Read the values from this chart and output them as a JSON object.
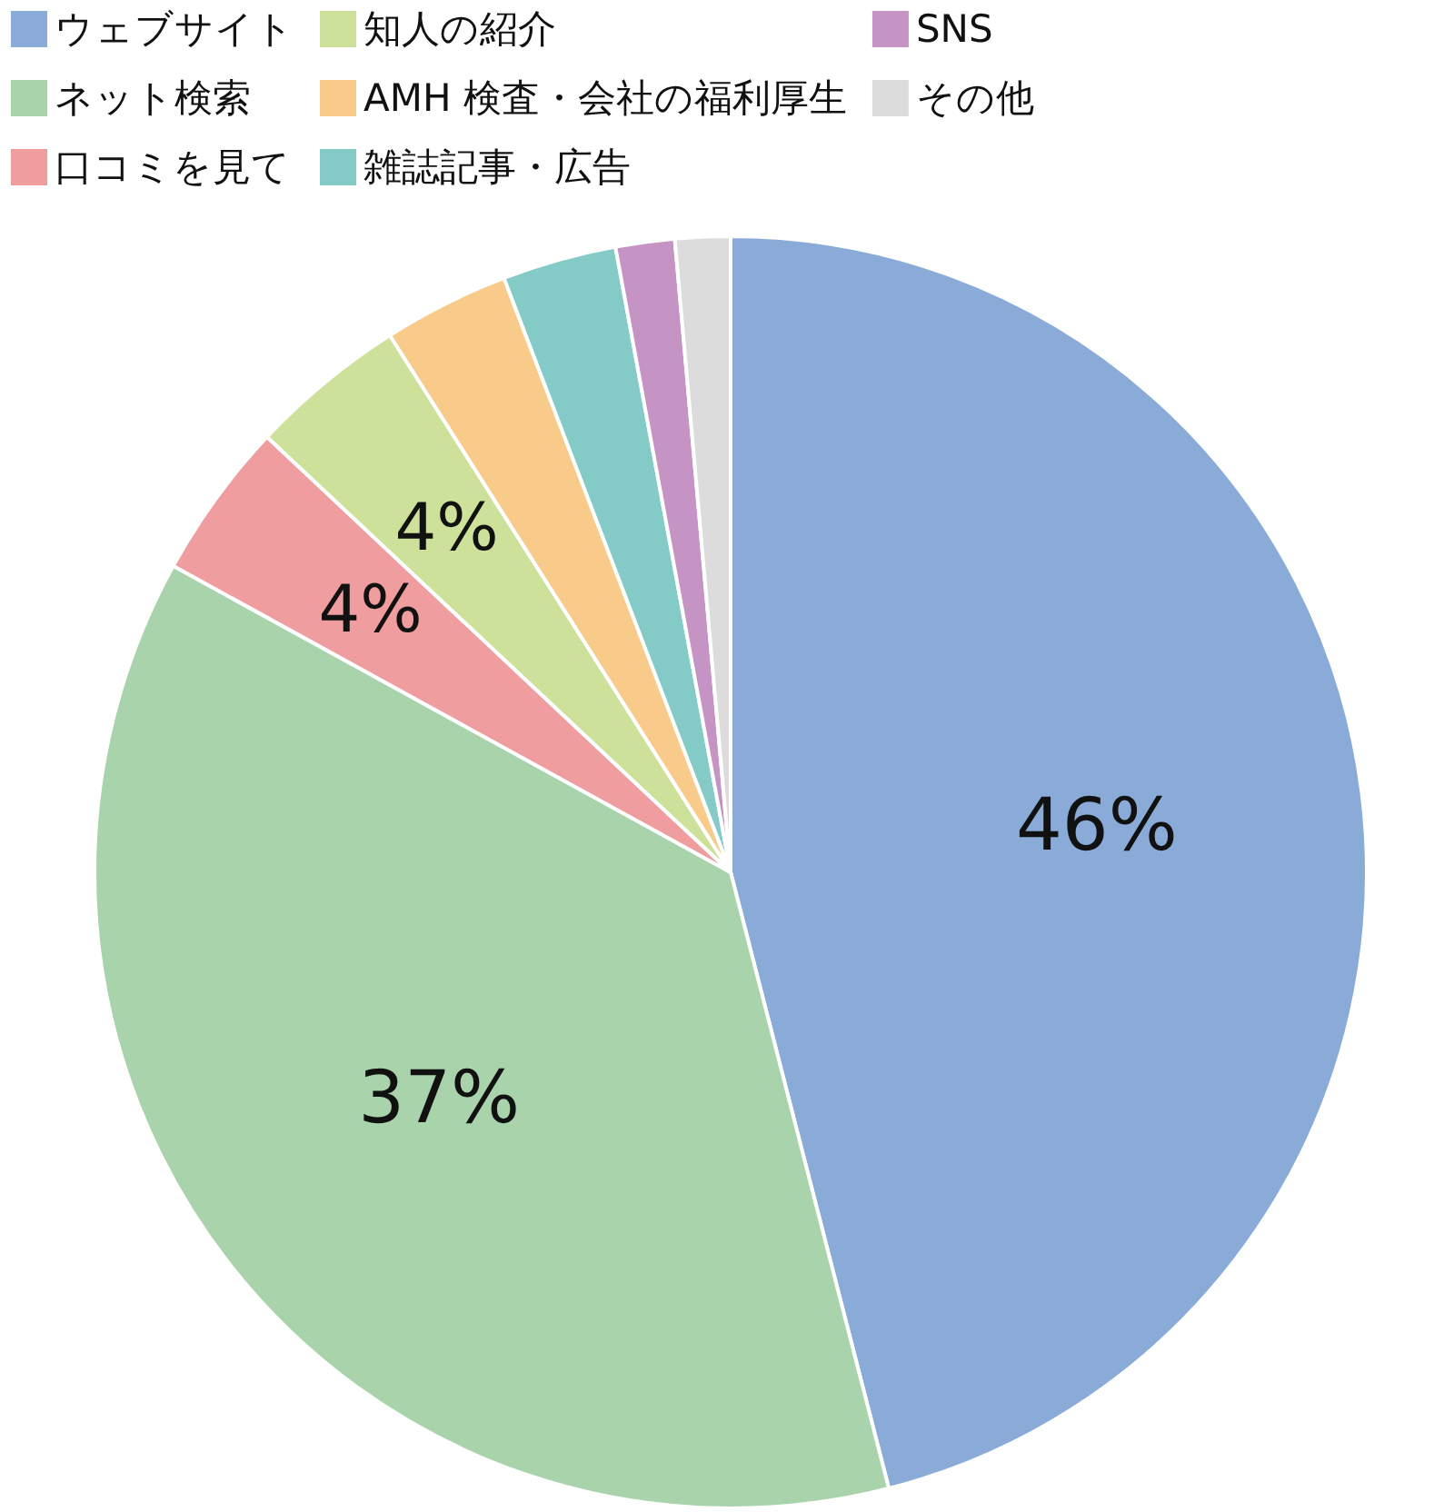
{
  "chart_data": {
    "type": "pie",
    "categories": [
      "ウェブサイト",
      "ネット検索",
      "口コミを見て",
      "知人の紹介",
      "AMH 検査・会社の福利厚生",
      "雑誌記事・広告",
      "SNS",
      "その他"
    ],
    "values": [
      46,
      37,
      4,
      4,
      3.2,
      2.9,
      1.5,
      1.4
    ],
    "colors": [
      "#8aabd8",
      "#a8d3ab",
      "#ef9d9e",
      "#cde19b",
      "#f8cb8a",
      "#84cbc7",
      "#c593c4",
      "#dcdcdc"
    ],
    "value_labels": [
      "46%",
      "37%",
      "4%",
      "4%",
      null,
      null,
      null,
      null
    ],
    "legend": "top"
  }
}
